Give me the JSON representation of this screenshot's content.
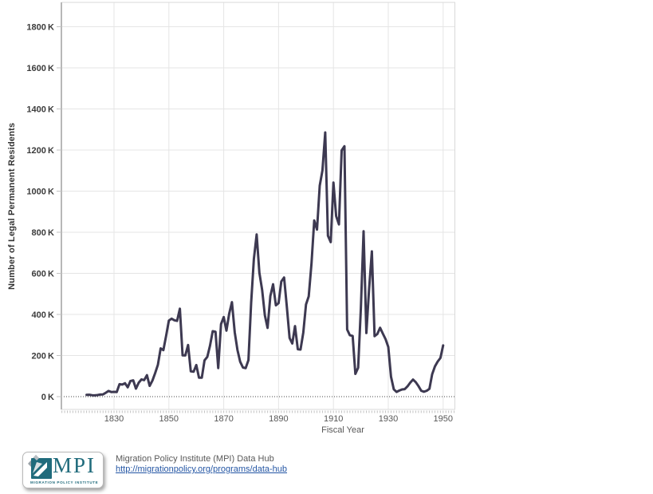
{
  "colors": {
    "line": "#3d3951",
    "grid": "#e5e5e5",
    "border": "#d9d9d9",
    "axis": "#b8b8b8",
    "tick": "#c2c2c2",
    "zero": "#454545",
    "y_label": "#3b3b3b",
    "x_label": "#575757",
    "brand_teal": "#206b7c",
    "link_blue": "#2456a4"
  },
  "chart_data": {
    "type": "line",
    "title": "",
    "xlabel": "Fiscal Year",
    "ylabel": "Number of Legal Permanent Residents",
    "grid": true,
    "legend_position": "none",
    "xlim": [
      1811,
      1954
    ],
    "ylim": [
      0,
      1920000
    ],
    "x_ticks": [
      1830,
      1850,
      1870,
      1890,
      1910,
      1930,
      1950
    ],
    "y_ticks": [
      {
        "value": 0,
        "label": "0 K"
      },
      {
        "value": 200000,
        "label": "200 K"
      },
      {
        "value": 400000,
        "label": "400 K"
      },
      {
        "value": 600000,
        "label": "600 K"
      },
      {
        "value": 800000,
        "label": "800 K"
      },
      {
        "value": 1000000,
        "label": "1000 K"
      },
      {
        "value": 1200000,
        "label": "1200 K"
      },
      {
        "value": 1400000,
        "label": "1400 K"
      },
      {
        "value": 1600000,
        "label": "1600 K"
      },
      {
        "value": 1800000,
        "label": "1800 K"
      }
    ],
    "series": [
      {
        "name": "Number of Legal Permanent Residents",
        "x": [
          1820,
          1821,
          1822,
          1823,
          1824,
          1825,
          1826,
          1827,
          1828,
          1829,
          1830,
          1831,
          1832,
          1833,
          1834,
          1835,
          1836,
          1837,
          1838,
          1839,
          1840,
          1841,
          1842,
          1843,
          1844,
          1845,
          1846,
          1847,
          1848,
          1849,
          1850,
          1851,
          1852,
          1853,
          1854,
          1855,
          1856,
          1857,
          1858,
          1859,
          1860,
          1861,
          1862,
          1863,
          1864,
          1865,
          1866,
          1867,
          1868,
          1869,
          1870,
          1871,
          1872,
          1873,
          1874,
          1875,
          1876,
          1877,
          1878,
          1879,
          1880,
          1881,
          1882,
          1883,
          1884,
          1885,
          1886,
          1887,
          1888,
          1889,
          1890,
          1891,
          1892,
          1893,
          1894,
          1895,
          1896,
          1897,
          1898,
          1899,
          1900,
          1901,
          1902,
          1903,
          1904,
          1905,
          1906,
          1907,
          1908,
          1909,
          1910,
          1911,
          1912,
          1913,
          1914,
          1915,
          1916,
          1917,
          1918,
          1919,
          1920,
          1921,
          1922,
          1923,
          1924,
          1925,
          1926,
          1927,
          1928,
          1929,
          1930,
          1931,
          1932,
          1933,
          1934,
          1935,
          1936,
          1937,
          1938,
          1939,
          1940,
          1941,
          1942,
          1943,
          1944,
          1945,
          1946,
          1947,
          1948,
          1949,
          1950
        ],
        "y": [
          8385,
          9127,
          6911,
          6354,
          7912,
          10199,
          10837,
          18875,
          27382,
          22520,
          23322,
          22633,
          60482,
          58640,
          65365,
          45374,
          76242,
          79340,
          38914,
          68069,
          84066,
          80289,
          104565,
          52496,
          78615,
          114371,
          154416,
          234968,
          226527,
          297024,
          369980,
          379466,
          371603,
          368645,
          427833,
          200877,
          200436,
          251306,
          123126,
          121282,
          153640,
          91918,
          91985,
          176282,
          193418,
          248120,
          318568,
          315722,
          138840,
          352768,
          387203,
          321350,
          404806,
          459803,
          313339,
          227498,
          169986,
          141857,
          138469,
          177826,
          457257,
          669431,
          788992,
          603322,
          518592,
          395346,
          334203,
          490109,
          546889,
          444427,
          455302,
          560319,
          579663,
          439730,
          285631,
          258536,
          343267,
          230832,
          229299,
          311715,
          448572,
          487918,
          648743,
          857046,
          812870,
          1026499,
          1100735,
          1285349,
          782870,
          751786,
          1041570,
          878587,
          838172,
          1197892,
          1218480,
          326700,
          298826,
          295403,
          110618,
          141132,
          430001,
          805228,
          309556,
          522919,
          706896,
          294314,
          304488,
          335175,
          307255,
          279678,
          241700,
          97139,
          35576,
          23068,
          29470,
          34956,
          36329,
          50244,
          67895,
          82998,
          70756,
          51776,
          28781,
          23725,
          28551,
          38119,
          108721,
          147292,
          170570,
          188317,
          249187
        ]
      }
    ]
  },
  "footer": {
    "logo": {
      "acronym": "MPI",
      "tagline": "MIGRATION POLICY INSTITUTE"
    },
    "source_name": "Migration Policy Institute (MPI) Data Hub",
    "source_url": "http://migrationpolicy.org/programs/data-hub"
  }
}
